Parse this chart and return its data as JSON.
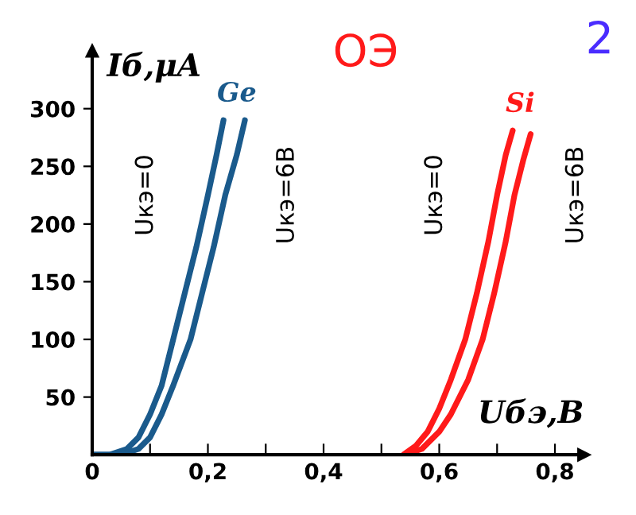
{
  "chart_data": {
    "type": "line",
    "title": "ОЭ",
    "xlabel": "Uбэ,В",
    "ylabel": "Iб,μA",
    "annotations": [
      {
        "text": "Ge",
        "x": 0.25,
        "y": 290
      },
      {
        "text": "Si",
        "x": 0.74,
        "y": 281
      },
      "2"
    ],
    "xlim": [
      0,
      0.85
    ],
    "ylim": [
      0,
      350
    ],
    "xticks": [
      {
        "value": 0,
        "label": "0"
      },
      {
        "value": 0.1,
        "label": null
      },
      {
        "value": 0.2,
        "label": "0,2"
      },
      {
        "value": 0.3,
        "label": null
      },
      {
        "value": 0.4,
        "label": "0,4"
      },
      {
        "value": 0.5,
        "label": null
      },
      {
        "value": 0.6,
        "label": "0,6"
      },
      {
        "value": 0.7,
        "label": null
      },
      {
        "value": 0.8,
        "label": "0,8"
      }
    ],
    "yticks": [
      50,
      100,
      150,
      200,
      250,
      300
    ],
    "grid": false,
    "legend": false,
    "marker": "none",
    "line_style": "solid",
    "series": [
      {
        "name": "Uкэ=0",
        "color": "#1a5a8c",
        "x": [
          0,
          0.03,
          0.06,
          0.08,
          0.1,
          0.12,
          0.14,
          0.16,
          0.18,
          0.2,
          0.215,
          0.227
        ],
        "values": [
          0,
          0,
          5,
          15,
          35,
          60,
          100,
          140,
          180,
          225,
          260,
          290
        ]
      },
      {
        "name": "Uкэ=6В",
        "color": "#1a5a8c",
        "x": [
          0,
          0.05,
          0.08,
          0.1,
          0.12,
          0.14,
          0.17,
          0.19,
          0.21,
          0.23,
          0.25,
          0.264
        ],
        "values": [
          0,
          0,
          5,
          15,
          35,
          60,
          100,
          140,
          180,
          225,
          260,
          290
        ]
      },
      {
        "name": "Uкэ=0",
        "color": "#ff1a1a",
        "x": [
          0.538,
          0.56,
          0.58,
          0.6,
          0.62,
          0.645,
          0.665,
          0.685,
          0.7,
          0.715,
          0.727
        ],
        "values": [
          0,
          8,
          20,
          40,
          65,
          100,
          140,
          185,
          225,
          260,
          281
        ]
      },
      {
        "name": "Uкэ=6В",
        "color": "#ff1a1a",
        "x": [
          0.54,
          0.57,
          0.6,
          0.62,
          0.65,
          0.675,
          0.695,
          0.715,
          0.73,
          0.745,
          0.758
        ],
        "values": [
          0,
          5,
          20,
          35,
          65,
          100,
          140,
          185,
          225,
          255,
          278
        ]
      }
    ]
  }
}
